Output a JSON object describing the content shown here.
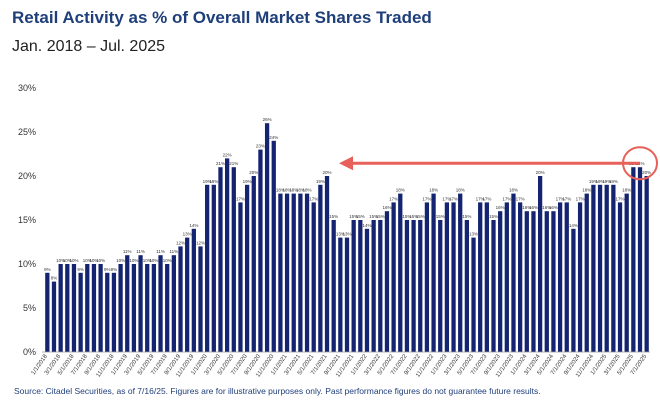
{
  "header": {
    "title": "Retail Activity as % of Overall Market Shares Traded",
    "subtitle": "Jan. 2018 – Jul. 2025"
  },
  "footer": {
    "source": "Source: Citadel Securities, as of 7/16/25. Figures are for illustrative purposes only. Past performance figures do not guarantee future results."
  },
  "colors": {
    "bar": "#142470",
    "arrow": "#e8605a",
    "axis_text": "#333333",
    "gridline": "#e0e0e0"
  },
  "chart_data": {
    "type": "bar",
    "title": "Retail Activity as % of Overall Market Shares Traded",
    "subtitle": "Jan. 2018 – Jul. 2025",
    "ylim": [
      0,
      30
    ],
    "yticks": [
      "0%",
      "5%",
      "10%",
      "15%",
      "20%",
      "25%",
      "30%"
    ],
    "xlabel": "",
    "ylabel": "",
    "xtick_labels": [
      "1/1/2018",
      "3/1/2018",
      "5/1/2018",
      "7/1/2018",
      "9/1/2018",
      "11/1/2018",
      "1/1/2019",
      "3/1/2019",
      "5/1/2019",
      "7/1/2019",
      "9/1/2019",
      "11/1/2019",
      "1/1/2020",
      "3/1/2020",
      "5/1/2020",
      "7/1/2020",
      "9/1/2020",
      "11/1/2020",
      "1/1/2021",
      "3/1/2021",
      "5/1/2021",
      "7/1/2021",
      "9/1/2021",
      "11/1/2021",
      "1/1/2022",
      "3/1/2022",
      "5/1/2022",
      "7/1/2022",
      "9/1/2022",
      "11/1/2022",
      "1/1/2023",
      "3/1/2023",
      "5/1/2023",
      "7/1/2023",
      "9/1/2023",
      "11/1/2023",
      "1/1/2024",
      "3/1/2024",
      "5/1/2024",
      "7/1/2024",
      "9/1/2024",
      "11/1/2024",
      "1/1/2025",
      "3/1/2025",
      "5/1/2025",
      "7/1/2025"
    ],
    "categories": [
      "Jan-2018",
      "Feb-2018",
      "Mar-2018",
      "Apr-2018",
      "May-2018",
      "Jun-2018",
      "Jul-2018",
      "Aug-2018",
      "Sep-2018",
      "Oct-2018",
      "Nov-2018",
      "Dec-2018",
      "Jan-2019",
      "Feb-2019",
      "Mar-2019",
      "Apr-2019",
      "May-2019",
      "Jun-2019",
      "Jul-2019",
      "Aug-2019",
      "Sep-2019",
      "Oct-2019",
      "Nov-2019",
      "Dec-2019",
      "Jan-2020",
      "Feb-2020",
      "Mar-2020",
      "Apr-2020",
      "May-2020",
      "Jun-2020",
      "Jul-2020",
      "Aug-2020",
      "Sep-2020",
      "Oct-2020",
      "Nov-2020",
      "Dec-2020",
      "Jan-2021",
      "Feb-2021",
      "Mar-2021",
      "Apr-2021",
      "May-2021",
      "Jun-2021",
      "Jul-2021",
      "Aug-2021",
      "Sep-2021",
      "Oct-2021",
      "Nov-2021",
      "Dec-2021",
      "Jan-2022",
      "Feb-2022",
      "Mar-2022",
      "Apr-2022",
      "May-2022",
      "Jun-2022",
      "Jul-2022",
      "Aug-2022",
      "Sep-2022",
      "Oct-2022",
      "Nov-2022",
      "Dec-2022",
      "Jan-2023",
      "Feb-2023",
      "Mar-2023",
      "Apr-2023",
      "May-2023",
      "Jun-2023",
      "Jul-2023",
      "Aug-2023",
      "Sep-2023",
      "Oct-2023",
      "Nov-2023",
      "Dec-2023",
      "Jan-2024",
      "Feb-2024",
      "Mar-2024",
      "Apr-2024",
      "May-2024",
      "Jun-2024",
      "Jul-2024",
      "Aug-2024",
      "Sep-2024",
      "Oct-2024",
      "Nov-2024",
      "Dec-2024",
      "Jan-2025",
      "Feb-2025",
      "Mar-2025",
      "Apr-2025",
      "May-2025",
      "Jun-2025",
      "Jul-2025"
    ],
    "values": [
      9,
      8,
      10,
      10,
      10,
      9,
      10,
      10,
      10,
      9,
      9,
      10,
      11,
      10,
      11,
      10,
      10,
      11,
      10,
      11,
      12,
      13,
      14,
      12,
      19,
      19,
      21,
      22,
      21,
      17,
      19,
      20,
      23,
      26,
      24,
      18,
      18,
      18,
      18,
      18,
      17,
      19,
      20,
      15,
      13,
      13,
      15,
      15,
      14,
      15,
      15,
      16,
      17,
      18,
      15,
      15,
      15,
      17,
      18,
      15,
      17,
      17,
      18,
      15,
      13,
      17,
      17,
      15,
      16,
      17,
      18,
      17,
      16,
      16,
      20,
      16,
      16,
      17,
      17,
      14,
      17,
      18,
      19,
      19,
      19,
      19,
      17,
      18,
      21,
      21,
      20
    ],
    "value_labels": [
      "9%",
      "8%",
      "10%",
      "10%",
      "10%",
      "9%",
      "10%",
      "10%",
      "10%",
      "9%",
      "9%",
      "10%",
      "11%",
      "10%",
      "11%",
      "10%",
      "10%",
      "11%",
      "10%",
      "11%",
      "12%",
      "13%",
      "14%",
      "12%",
      "19%",
      "19%",
      "21%",
      "22%",
      "21%",
      "17%",
      "19%",
      "20%",
      "23%",
      "26%",
      "24%",
      "18%",
      "18%",
      "18%",
      "18%",
      "18%",
      "17%",
      "19%",
      "20%",
      "15%",
      "13%",
      "13%",
      "15%",
      "15%",
      "14%",
      "15%",
      "15%",
      "16%",
      "17%",
      "18%",
      "15%",
      "15%",
      "15%",
      "17%",
      "18%",
      "15%",
      "17%",
      "17%",
      "18%",
      "15%",
      "13%",
      "17%",
      "17%",
      "15%",
      "16%",
      "17%",
      "18%",
      "17%",
      "16%",
      "16%",
      "20%",
      "16%",
      "16%",
      "17%",
      "17%",
      "14%",
      "17%",
      "18%",
      "19%",
      "19%",
      "19%",
      "19%",
      "17%",
      "18%",
      "21%",
      "21%",
      "20%"
    ],
    "grid": false,
    "annotations": [
      {
        "type": "arrow",
        "direction": "left",
        "at_value": 21,
        "from_category": "Jun-2025",
        "to_category": "Jul-2021"
      },
      {
        "type": "circle",
        "around_categories": [
          "May-2025",
          "Jul-2025"
        ]
      }
    ]
  }
}
